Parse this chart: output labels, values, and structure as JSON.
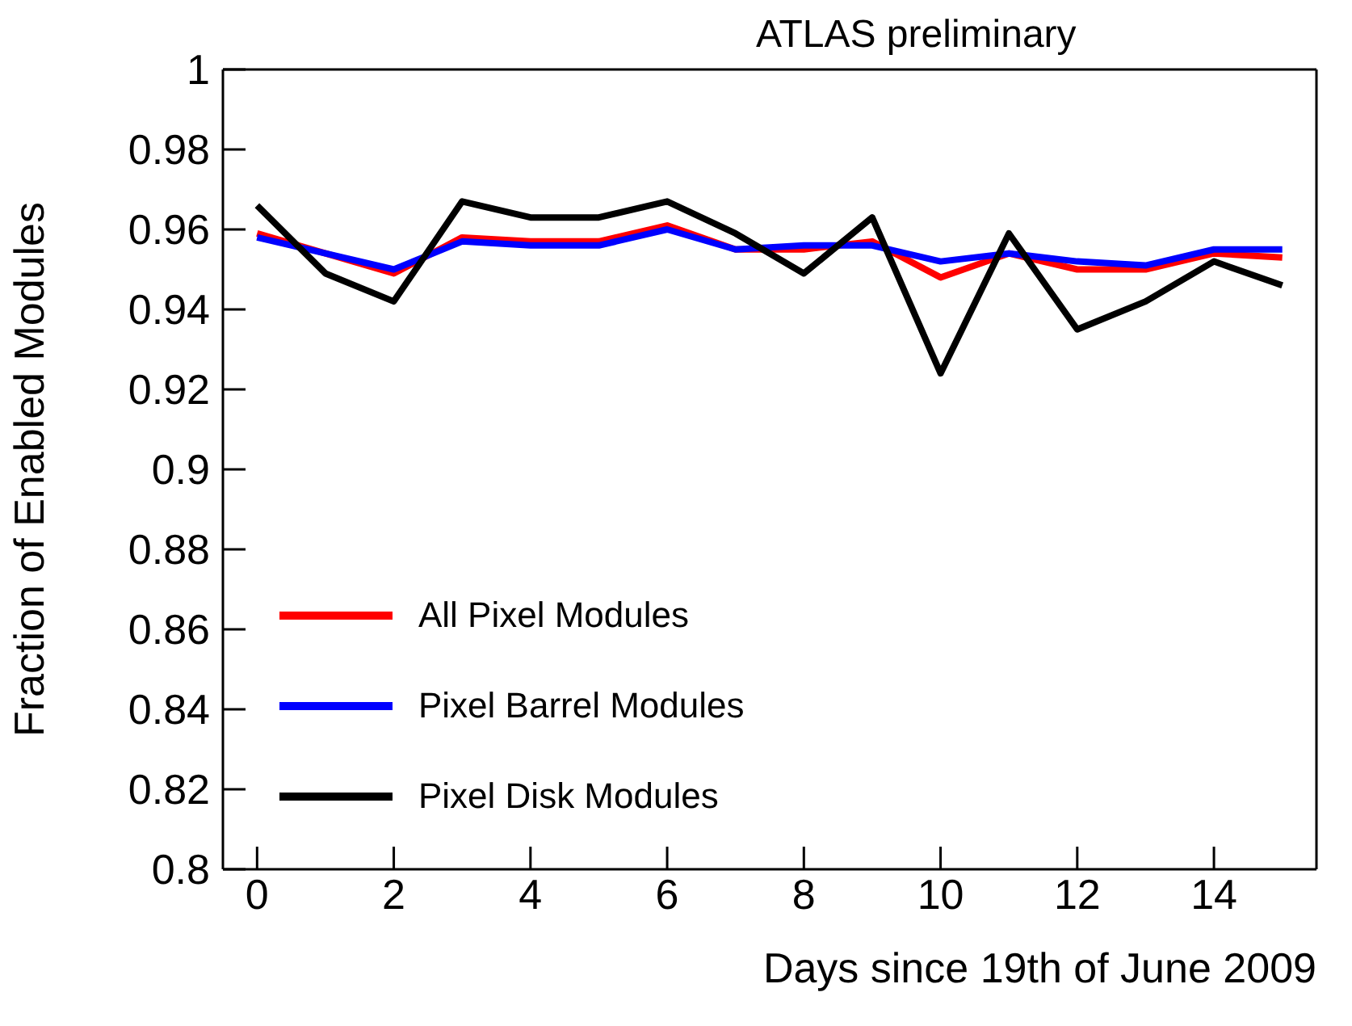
{
  "chart_data": {
    "type": "line",
    "title": "ATLAS preliminary",
    "xlabel": "Days since 19th of June 2009",
    "ylabel": "Fraction of Enabled Modules",
    "x": [
      0,
      1,
      2,
      3,
      4,
      5,
      6,
      7,
      8,
      9,
      10,
      11,
      12,
      13,
      14,
      15
    ],
    "series": [
      {
        "name": "All Pixel Modules",
        "color": "#ff0000",
        "values": [
          0.959,
          0.954,
          0.949,
          0.958,
          0.957,
          0.957,
          0.961,
          0.955,
          0.955,
          0.957,
          0.948,
          0.954,
          0.95,
          0.95,
          0.954,
          0.953
        ]
      },
      {
        "name": "Pixel Barrel Modules",
        "color": "#0000ff",
        "values": [
          0.958,
          0.954,
          0.95,
          0.957,
          0.956,
          0.956,
          0.96,
          0.955,
          0.956,
          0.956,
          0.952,
          0.954,
          0.952,
          0.951,
          0.955,
          0.955
        ]
      },
      {
        "name": "Pixel Disk Modules",
        "color": "#000000",
        "values": [
          0.966,
          0.949,
          0.942,
          0.967,
          0.963,
          0.963,
          0.967,
          0.959,
          0.949,
          0.963,
          0.924,
          0.959,
          0.935,
          0.942,
          0.952,
          0.946
        ]
      }
    ],
    "xlim": [
      -0.5,
      15.5
    ],
    "xticks": [
      0,
      2,
      4,
      6,
      8,
      10,
      12,
      14
    ],
    "ylim": [
      0.8,
      1
    ],
    "yticks": [
      0.8,
      0.82,
      0.84,
      0.86,
      0.88,
      0.9,
      0.92,
      0.94,
      0.96,
      0.98,
      1
    ],
    "grid": false,
    "legend": "bottom left",
    "marker": "none",
    "line_style": "solid"
  }
}
